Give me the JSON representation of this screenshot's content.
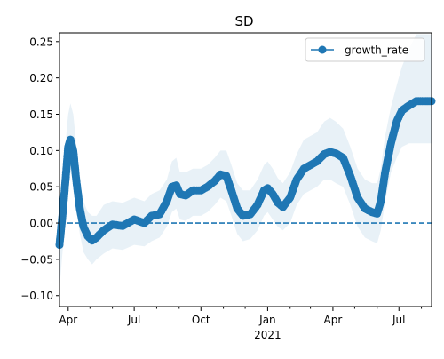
{
  "chart_data": {
    "type": "line",
    "title": "SD",
    "xlabel": "",
    "ylabel": "",
    "x_range": [
      "2020-03-20",
      "2021-08-15"
    ],
    "ylim": [
      -0.115,
      0.262
    ],
    "y_ticks": [
      -0.1,
      -0.05,
      0.0,
      0.05,
      0.1,
      0.15,
      0.2,
      0.25
    ],
    "y_tick_labels": [
      "−0.10",
      "−0.05",
      "0.00",
      "0.05",
      "0.10",
      "0.15",
      "0.20",
      "0.25"
    ],
    "x_major_ticks": [
      {
        "date": "2020-04-01",
        "label": "Apr"
      },
      {
        "date": "2020-07-01",
        "label": "Jul"
      },
      {
        "date": "2020-10-01",
        "label": "Oct"
      },
      {
        "date": "2021-01-01",
        "label": "Jan"
      },
      {
        "date": "2021-04-01",
        "label": "Apr"
      },
      {
        "date": "2021-07-01",
        "label": "Jul"
      }
    ],
    "x_year_label": {
      "date": "2021-01-01",
      "label": "2021"
    },
    "x_minor_ticks": [
      "2020-05-01",
      "2020-06-01",
      "2020-08-01",
      "2020-09-01",
      "2020-11-01",
      "2020-12-01",
      "2021-02-01",
      "2021-03-01",
      "2021-05-01",
      "2021-06-01",
      "2021-08-01"
    ],
    "reference_line": {
      "y": 0,
      "style": "dashed",
      "color": "#1f77b4"
    },
    "legend": {
      "position": "top-right",
      "entries": [
        "growth_rate"
      ]
    },
    "colors": {
      "series": "#1f77b4",
      "band": "#1f77b4"
    },
    "series": [
      {
        "name": "growth_rate",
        "marker": "circle",
        "points": [
          {
            "x": "2020-03-20",
            "y": -0.03,
            "lo": -0.09,
            "hi": -0.01
          },
          {
            "x": "2020-03-25",
            "y": 0.02,
            "lo": -0.03,
            "hi": 0.06
          },
          {
            "x": "2020-03-30",
            "y": 0.08,
            "lo": 0.01,
            "hi": 0.13
          },
          {
            "x": "2020-04-01",
            "y": 0.105,
            "lo": 0.05,
            "hi": 0.15
          },
          {
            "x": "2020-04-04",
            "y": 0.115,
            "lo": 0.07,
            "hi": 0.165
          },
          {
            "x": "2020-04-08",
            "y": 0.1,
            "lo": 0.06,
            "hi": 0.15
          },
          {
            "x": "2020-04-12",
            "y": 0.06,
            "lo": 0.02,
            "hi": 0.11
          },
          {
            "x": "2020-04-17",
            "y": 0.02,
            "lo": -0.015,
            "hi": 0.06
          },
          {
            "x": "2020-04-22",
            "y": -0.005,
            "lo": -0.04,
            "hi": 0.03
          },
          {
            "x": "2020-04-28",
            "y": -0.018,
            "lo": -0.05,
            "hi": 0.015
          },
          {
            "x": "2020-05-04",
            "y": -0.024,
            "lo": -0.057,
            "hi": 0.01
          },
          {
            "x": "2020-05-10",
            "y": -0.02,
            "lo": -0.05,
            "hi": 0.01
          },
          {
            "x": "2020-05-20",
            "y": -0.01,
            "lo": -0.042,
            "hi": 0.025
          },
          {
            "x": "2020-06-01",
            "y": -0.002,
            "lo": -0.035,
            "hi": 0.03
          },
          {
            "x": "2020-06-15",
            "y": -0.004,
            "lo": -0.037,
            "hi": 0.028
          },
          {
            "x": "2020-07-01",
            "y": 0.005,
            "lo": -0.03,
            "hi": 0.035
          },
          {
            "x": "2020-07-15",
            "y": 0.0,
            "lo": -0.032,
            "hi": 0.03
          },
          {
            "x": "2020-07-25",
            "y": 0.01,
            "lo": -0.025,
            "hi": 0.04
          },
          {
            "x": "2020-08-05",
            "y": 0.012,
            "lo": -0.02,
            "hi": 0.045
          },
          {
            "x": "2020-08-15",
            "y": 0.03,
            "lo": -0.005,
            "hi": 0.06
          },
          {
            "x": "2020-08-22",
            "y": 0.05,
            "lo": 0.015,
            "hi": 0.085
          },
          {
            "x": "2020-08-28",
            "y": 0.052,
            "lo": 0.02,
            "hi": 0.09
          },
          {
            "x": "2020-09-02",
            "y": 0.04,
            "lo": 0.005,
            "hi": 0.07
          },
          {
            "x": "2020-09-10",
            "y": 0.038,
            "lo": 0.003,
            "hi": 0.07
          },
          {
            "x": "2020-09-20",
            "y": 0.045,
            "lo": 0.01,
            "hi": 0.075
          },
          {
            "x": "2020-10-01",
            "y": 0.045,
            "lo": 0.01,
            "hi": 0.075
          },
          {
            "x": "2020-10-10",
            "y": 0.05,
            "lo": 0.015,
            "hi": 0.08
          },
          {
            "x": "2020-10-20",
            "y": 0.058,
            "lo": 0.025,
            "hi": 0.09
          },
          {
            "x": "2020-10-28",
            "y": 0.067,
            "lo": 0.035,
            "hi": 0.1
          },
          {
            "x": "2020-11-05",
            "y": 0.065,
            "lo": 0.03,
            "hi": 0.1
          },
          {
            "x": "2020-11-12",
            "y": 0.045,
            "lo": 0.01,
            "hi": 0.08
          },
          {
            "x": "2020-11-20",
            "y": 0.02,
            "lo": -0.015,
            "hi": 0.055
          },
          {
            "x": "2020-11-28",
            "y": 0.01,
            "lo": -0.025,
            "hi": 0.045
          },
          {
            "x": "2020-12-08",
            "y": 0.012,
            "lo": -0.022,
            "hi": 0.045
          },
          {
            "x": "2020-12-18",
            "y": 0.025,
            "lo": -0.01,
            "hi": 0.06
          },
          {
            "x": "2020-12-27",
            "y": 0.045,
            "lo": 0.01,
            "hi": 0.08
          },
          {
            "x": "2021-01-01",
            "y": 0.048,
            "lo": 0.015,
            "hi": 0.085
          },
          {
            "x": "2021-01-08",
            "y": 0.04,
            "lo": 0.005,
            "hi": 0.075
          },
          {
            "x": "2021-01-15",
            "y": 0.028,
            "lo": -0.005,
            "hi": 0.062
          },
          {
            "x": "2021-01-22",
            "y": 0.022,
            "lo": -0.01,
            "hi": 0.055
          },
          {
            "x": "2021-02-01",
            "y": 0.035,
            "lo": 0.0,
            "hi": 0.07
          },
          {
            "x": "2021-02-10",
            "y": 0.06,
            "lo": 0.025,
            "hi": 0.095
          },
          {
            "x": "2021-02-20",
            "y": 0.075,
            "lo": 0.04,
            "hi": 0.115
          },
          {
            "x": "2021-03-01",
            "y": 0.08,
            "lo": 0.045,
            "hi": 0.12
          },
          {
            "x": "2021-03-10",
            "y": 0.085,
            "lo": 0.05,
            "hi": 0.125
          },
          {
            "x": "2021-03-20",
            "y": 0.095,
            "lo": 0.06,
            "hi": 0.14
          },
          {
            "x": "2021-03-28",
            "y": 0.098,
            "lo": 0.06,
            "hi": 0.145
          },
          {
            "x": "2021-04-05",
            "y": 0.096,
            "lo": 0.055,
            "hi": 0.14
          },
          {
            "x": "2021-04-15",
            "y": 0.09,
            "lo": 0.05,
            "hi": 0.13
          },
          {
            "x": "2021-04-25",
            "y": 0.065,
            "lo": 0.025,
            "hi": 0.105
          },
          {
            "x": "2021-05-05",
            "y": 0.035,
            "lo": -0.005,
            "hi": 0.075
          },
          {
            "x": "2021-05-15",
            "y": 0.02,
            "lo": -0.02,
            "hi": 0.06
          },
          {
            "x": "2021-05-25",
            "y": 0.015,
            "lo": -0.025,
            "hi": 0.055
          },
          {
            "x": "2021-06-01",
            "y": 0.013,
            "lo": -0.028,
            "hi": 0.055
          },
          {
            "x": "2021-06-06",
            "y": 0.03,
            "lo": -0.01,
            "hi": 0.075
          },
          {
            "x": "2021-06-12",
            "y": 0.07,
            "lo": 0.03,
            "hi": 0.12
          },
          {
            "x": "2021-06-20",
            "y": 0.11,
            "lo": 0.07,
            "hi": 0.16
          },
          {
            "x": "2021-06-28",
            "y": 0.14,
            "lo": 0.09,
            "hi": 0.19
          },
          {
            "x": "2021-07-05",
            "y": 0.155,
            "lo": 0.105,
            "hi": 0.215
          },
          {
            "x": "2021-07-15",
            "y": 0.162,
            "lo": 0.11,
            "hi": 0.24
          },
          {
            "x": "2021-07-25",
            "y": 0.168,
            "lo": 0.11,
            "hi": 0.26
          },
          {
            "x": "2021-08-05",
            "y": 0.168,
            "lo": 0.11,
            "hi": 0.26
          },
          {
            "x": "2021-08-15",
            "y": 0.168,
            "lo": 0.11,
            "hi": 0.26
          }
        ]
      }
    ]
  }
}
